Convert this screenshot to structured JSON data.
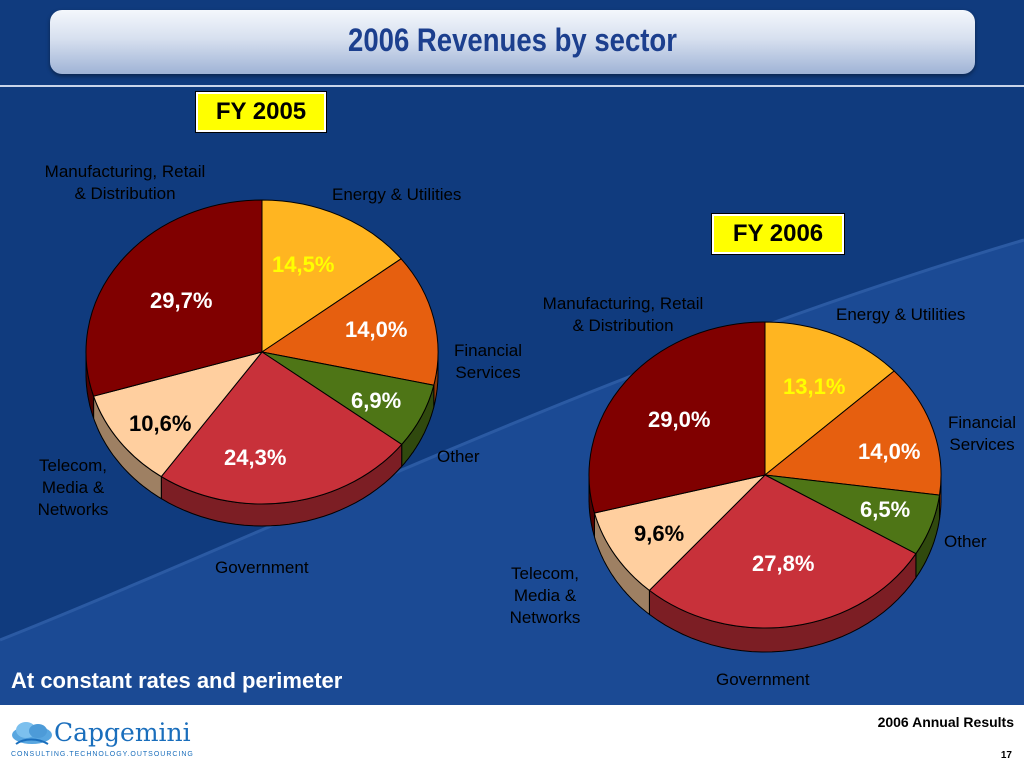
{
  "slide": {
    "title": "2006 Revenues by sector",
    "footnote": "At constant rates and perimeter",
    "footer_title": "2006 Annual Results",
    "page_number": "17",
    "logo": {
      "icon": "cloud-icon",
      "word": "Capgemini",
      "tagline": "CONSULTING.TECHNOLOGY.OUTSOURCING"
    }
  },
  "colors": {
    "manufacturing": "#800000",
    "energy": "#ffb521",
    "financial": "#e65f0f",
    "other": "#4e7516",
    "government": "#c8313a",
    "telecom": "#ffcf9f",
    "background": "#103b7e",
    "fy_box": "#ffff00"
  },
  "chart_data": [
    {
      "type": "pie",
      "title": "FY 2005",
      "categories": [
        "Energy & Utilities",
        "Financial Services",
        "Other",
        "Government",
        "Telecom, Media & Networks",
        "Manufacturing, Retail & Distribution"
      ],
      "values": [
        14.5,
        14.0,
        6.9,
        24.3,
        10.6,
        29.7
      ],
      "value_labels": [
        "14,5%",
        "14,0%",
        "6,9%",
        "24,3%",
        "10,6%",
        "29,7%"
      ],
      "unit": "%"
    },
    {
      "type": "pie",
      "title": "FY 2006",
      "categories": [
        "Energy & Utilities",
        "Financial Services",
        "Other",
        "Government",
        "Telecom, Media & Networks",
        "Manufacturing, Retail & Distribution"
      ],
      "values": [
        13.1,
        14.0,
        6.5,
        27.8,
        9.6,
        29.0
      ],
      "value_labels": [
        "13,1%",
        "14,0%",
        "6,5%",
        "27,8%",
        "9,6%",
        "29,0%"
      ],
      "unit": "%"
    }
  ],
  "labels": {
    "y2005": {
      "manufacturing": [
        "Manufacturing, Retail",
        "& Distribution"
      ],
      "energy": [
        "Energy & Utilities"
      ],
      "financial": [
        "Financial",
        "Services"
      ],
      "other": [
        "Other"
      ],
      "telecom": [
        "Telecom,",
        "Media &",
        "Networks"
      ],
      "government": [
        "Government"
      ]
    },
    "y2006": {
      "manufacturing": [
        "Manufacturing, Retail",
        "& Distribution"
      ],
      "energy": [
        "Energy & Utilities"
      ],
      "financial": [
        "Financial",
        "Services"
      ],
      "other": [
        "Other"
      ],
      "telecom": [
        "Telecom,",
        "Media &",
        "Networks"
      ],
      "government": [
        "Government"
      ]
    }
  }
}
